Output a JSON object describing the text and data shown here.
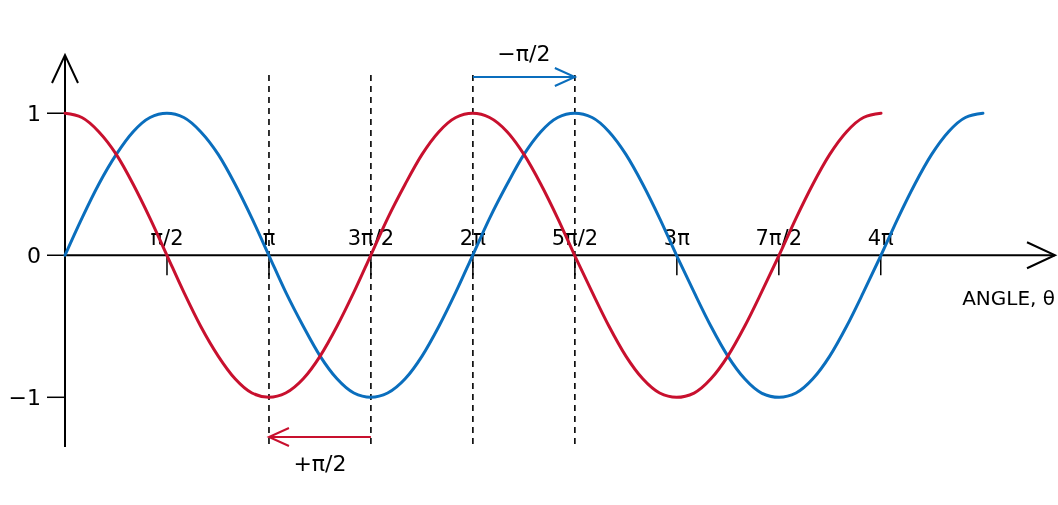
{
  "chart_data": {
    "type": "line",
    "xlabel": "ANGLE, θ",
    "x": [
      0,
      0.26,
      0.52,
      0.79,
      1.05,
      1.31,
      1.57,
      1.83,
      2.09,
      2.36,
      2.62,
      2.88,
      3.14,
      3.4,
      3.67,
      3.93,
      4.19,
      4.45,
      4.71,
      4.97,
      5.24,
      5.5,
      5.76,
      6.02,
      6.28,
      6.54,
      6.81,
      7.07,
      7.33,
      7.59,
      7.85,
      8.12,
      8.38,
      8.64,
      8.9,
      9.16,
      9.42,
      9.69,
      9.95,
      10.21,
      10.47,
      10.73,
      11.0,
      11.26,
      11.52,
      11.78,
      12.04,
      12.3,
      12.57,
      12.83,
      13.09,
      13.35,
      13.61,
      13.87,
      14.14
    ],
    "series": [
      {
        "color": "#0a6ebd",
        "values": [
          0,
          0.26,
          0.5,
          0.71,
          0.87,
          0.97,
          1,
          0.97,
          0.87,
          0.71,
          0.5,
          0.26,
          0,
          -0.26,
          -0.5,
          -0.71,
          -0.87,
          -0.97,
          -1,
          -0.97,
          -0.87,
          -0.71,
          -0.5,
          -0.26,
          0,
          0.26,
          0.5,
          0.71,
          0.87,
          0.97,
          1,
          0.97,
          0.87,
          0.71,
          0.5,
          0.26,
          0,
          -0.26,
          -0.5,
          -0.71,
          -0.87,
          -0.97,
          -1,
          -0.97,
          -0.87,
          -0.71,
          -0.5,
          -0.26,
          0,
          0.26,
          0.5,
          0.71,
          0.87,
          0.97,
          1
        ]
      },
      {
        "color": "#c8102e",
        "values": [
          1,
          0.97,
          0.87,
          0.71,
          0.5,
          0.26,
          0,
          -0.26,
          -0.5,
          -0.71,
          -0.87,
          -0.97,
          -1,
          -0.97,
          -0.87,
          -0.71,
          -0.5,
          -0.26,
          0,
          0.26,
          0.5,
          0.71,
          0.87,
          0.97,
          1,
          0.97,
          0.87,
          0.71,
          0.5,
          0.26,
          0,
          -0.26,
          -0.5,
          -0.71,
          -0.87,
          -0.97,
          -1,
          -0.97,
          -0.87,
          -0.71,
          -0.5,
          -0.26,
          0,
          0.26,
          0.5,
          0.71,
          0.87,
          0.97,
          1,
          null,
          null,
          null,
          null,
          null,
          null
        ]
      }
    ],
    "xlim": [
      0,
      15.25
    ],
    "xticks": [
      {
        "value": 1.571,
        "label": "π/2"
      },
      {
        "value": 3.142,
        "label": "π"
      },
      {
        "value": 4.712,
        "label": "3π/2"
      },
      {
        "value": 6.283,
        "label": "2π"
      },
      {
        "value": 7.854,
        "label": "5π/2"
      },
      {
        "value": 9.425,
        "label": "3π"
      },
      {
        "value": 10.996,
        "label": "7π/2"
      },
      {
        "value": 12.566,
        "label": "4π"
      }
    ],
    "ylim": [
      -1.35,
      1.41
    ],
    "yticks": [
      {
        "value": -1,
        "label": "−1"
      },
      0,
      1
    ],
    "grid": false,
    "marker": "none",
    "line_style": "solid",
    "ref_lines": [
      {
        "axis": "x",
        "value": 3.142,
        "color": "#000000",
        "line_style": "dashed"
      },
      {
        "axis": "x",
        "value": 4.712,
        "color": "#000000",
        "line_style": "dashed"
      },
      {
        "axis": "x",
        "value": 6.283,
        "color": "#000000",
        "line_style": "dashed"
      },
      {
        "axis": "x",
        "value": 7.854,
        "color": "#000000",
        "line_style": "dashed"
      }
    ],
    "annotations": [
      "−π/2",
      "+π/2"
    ]
  }
}
